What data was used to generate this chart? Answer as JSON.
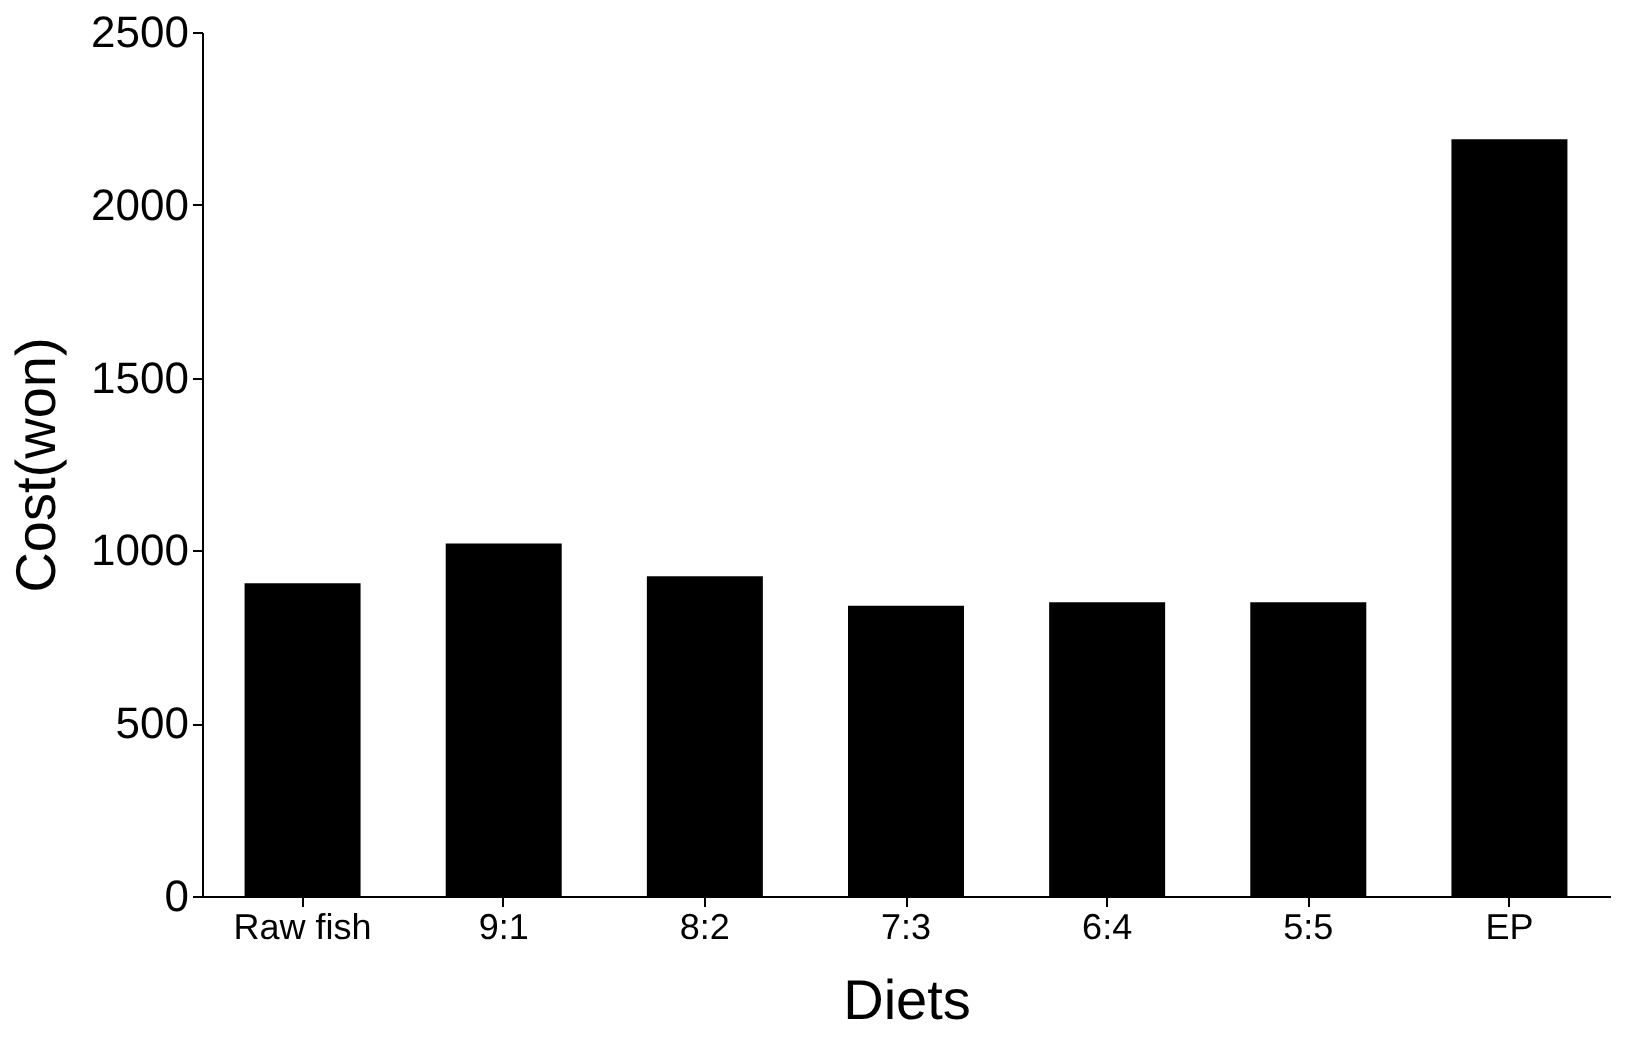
{
  "chart_data": {
    "type": "bar",
    "xlabel": "Diets",
    "ylabel": "Cost(won)",
    "categories": [
      "Raw fish",
      "9:1",
      "8:2",
      "7:3",
      "6:4",
      "5:5",
      "EP"
    ],
    "values": [
      905,
      1020,
      925,
      840,
      850,
      850,
      2190
    ],
    "color": "#000000",
    "ylim": [
      0,
      2500
    ],
    "yticks": [
      0,
      500,
      1000,
      1500,
      2000,
      2500
    ],
    "grid": false
  }
}
